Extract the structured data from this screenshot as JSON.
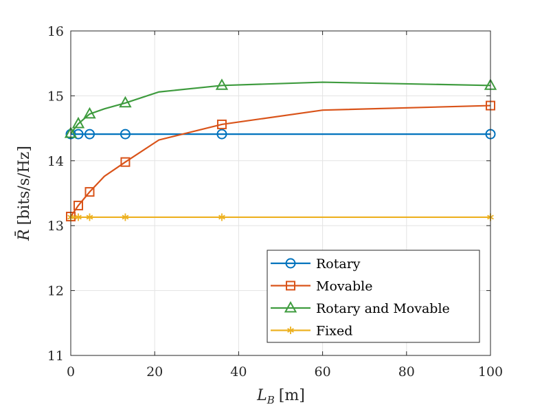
{
  "chart_data": {
    "type": "line",
    "xlabel_main": "L",
    "xlabel_sub": "B",
    "xlabel_unit": "[m]",
    "ylabel_main": "R̄",
    "ylabel_unit": "[bits/s/Hz]",
    "xlim": [
      0,
      100
    ],
    "ylim": [
      11,
      16
    ],
    "xticks": [
      0,
      20,
      40,
      60,
      80,
      100
    ],
    "yticks": [
      11,
      12,
      13,
      14,
      15,
      16
    ],
    "grid": true,
    "legend_position": "bottom-right",
    "series": [
      {
        "name": "Rotary",
        "color": "#0072BD",
        "marker": "circle",
        "x": [
          0,
          1.8,
          4.5,
          13,
          36,
          100
        ],
        "y": [
          14.41,
          14.41,
          14.41,
          14.41,
          14.41,
          14.41
        ],
        "marker_x": [
          0,
          1.8,
          4.5,
          13,
          36,
          100
        ]
      },
      {
        "name": "Movable",
        "color": "#D95319",
        "marker": "square",
        "x": [
          0,
          1.8,
          4.5,
          8,
          13,
          21,
          36,
          60,
          100
        ],
        "y": [
          13.14,
          13.31,
          13.52,
          13.76,
          13.98,
          14.32,
          14.56,
          14.78,
          14.85
        ],
        "marker_x": [
          0,
          1.8,
          4.5,
          13,
          36,
          100
        ]
      },
      {
        "name": "Rotary and Movable",
        "color": "#3E9B3E",
        "marker": "triangle",
        "x": [
          0,
          1.8,
          4.5,
          8,
          13,
          21,
          36,
          60,
          100
        ],
        "y": [
          14.42,
          14.57,
          14.72,
          14.8,
          14.89,
          15.06,
          15.16,
          15.21,
          15.16
        ],
        "marker_x": [
          0,
          1.8,
          4.5,
          13,
          36,
          100
        ]
      },
      {
        "name": "Fixed",
        "color": "#EDB120",
        "marker": "asterisk",
        "x": [
          0,
          1.8,
          4.5,
          13,
          36,
          100
        ],
        "y": [
          13.13,
          13.13,
          13.13,
          13.13,
          13.13,
          13.13
        ],
        "marker_x": [
          0,
          1.8,
          4.5,
          13,
          36,
          100
        ]
      }
    ]
  }
}
